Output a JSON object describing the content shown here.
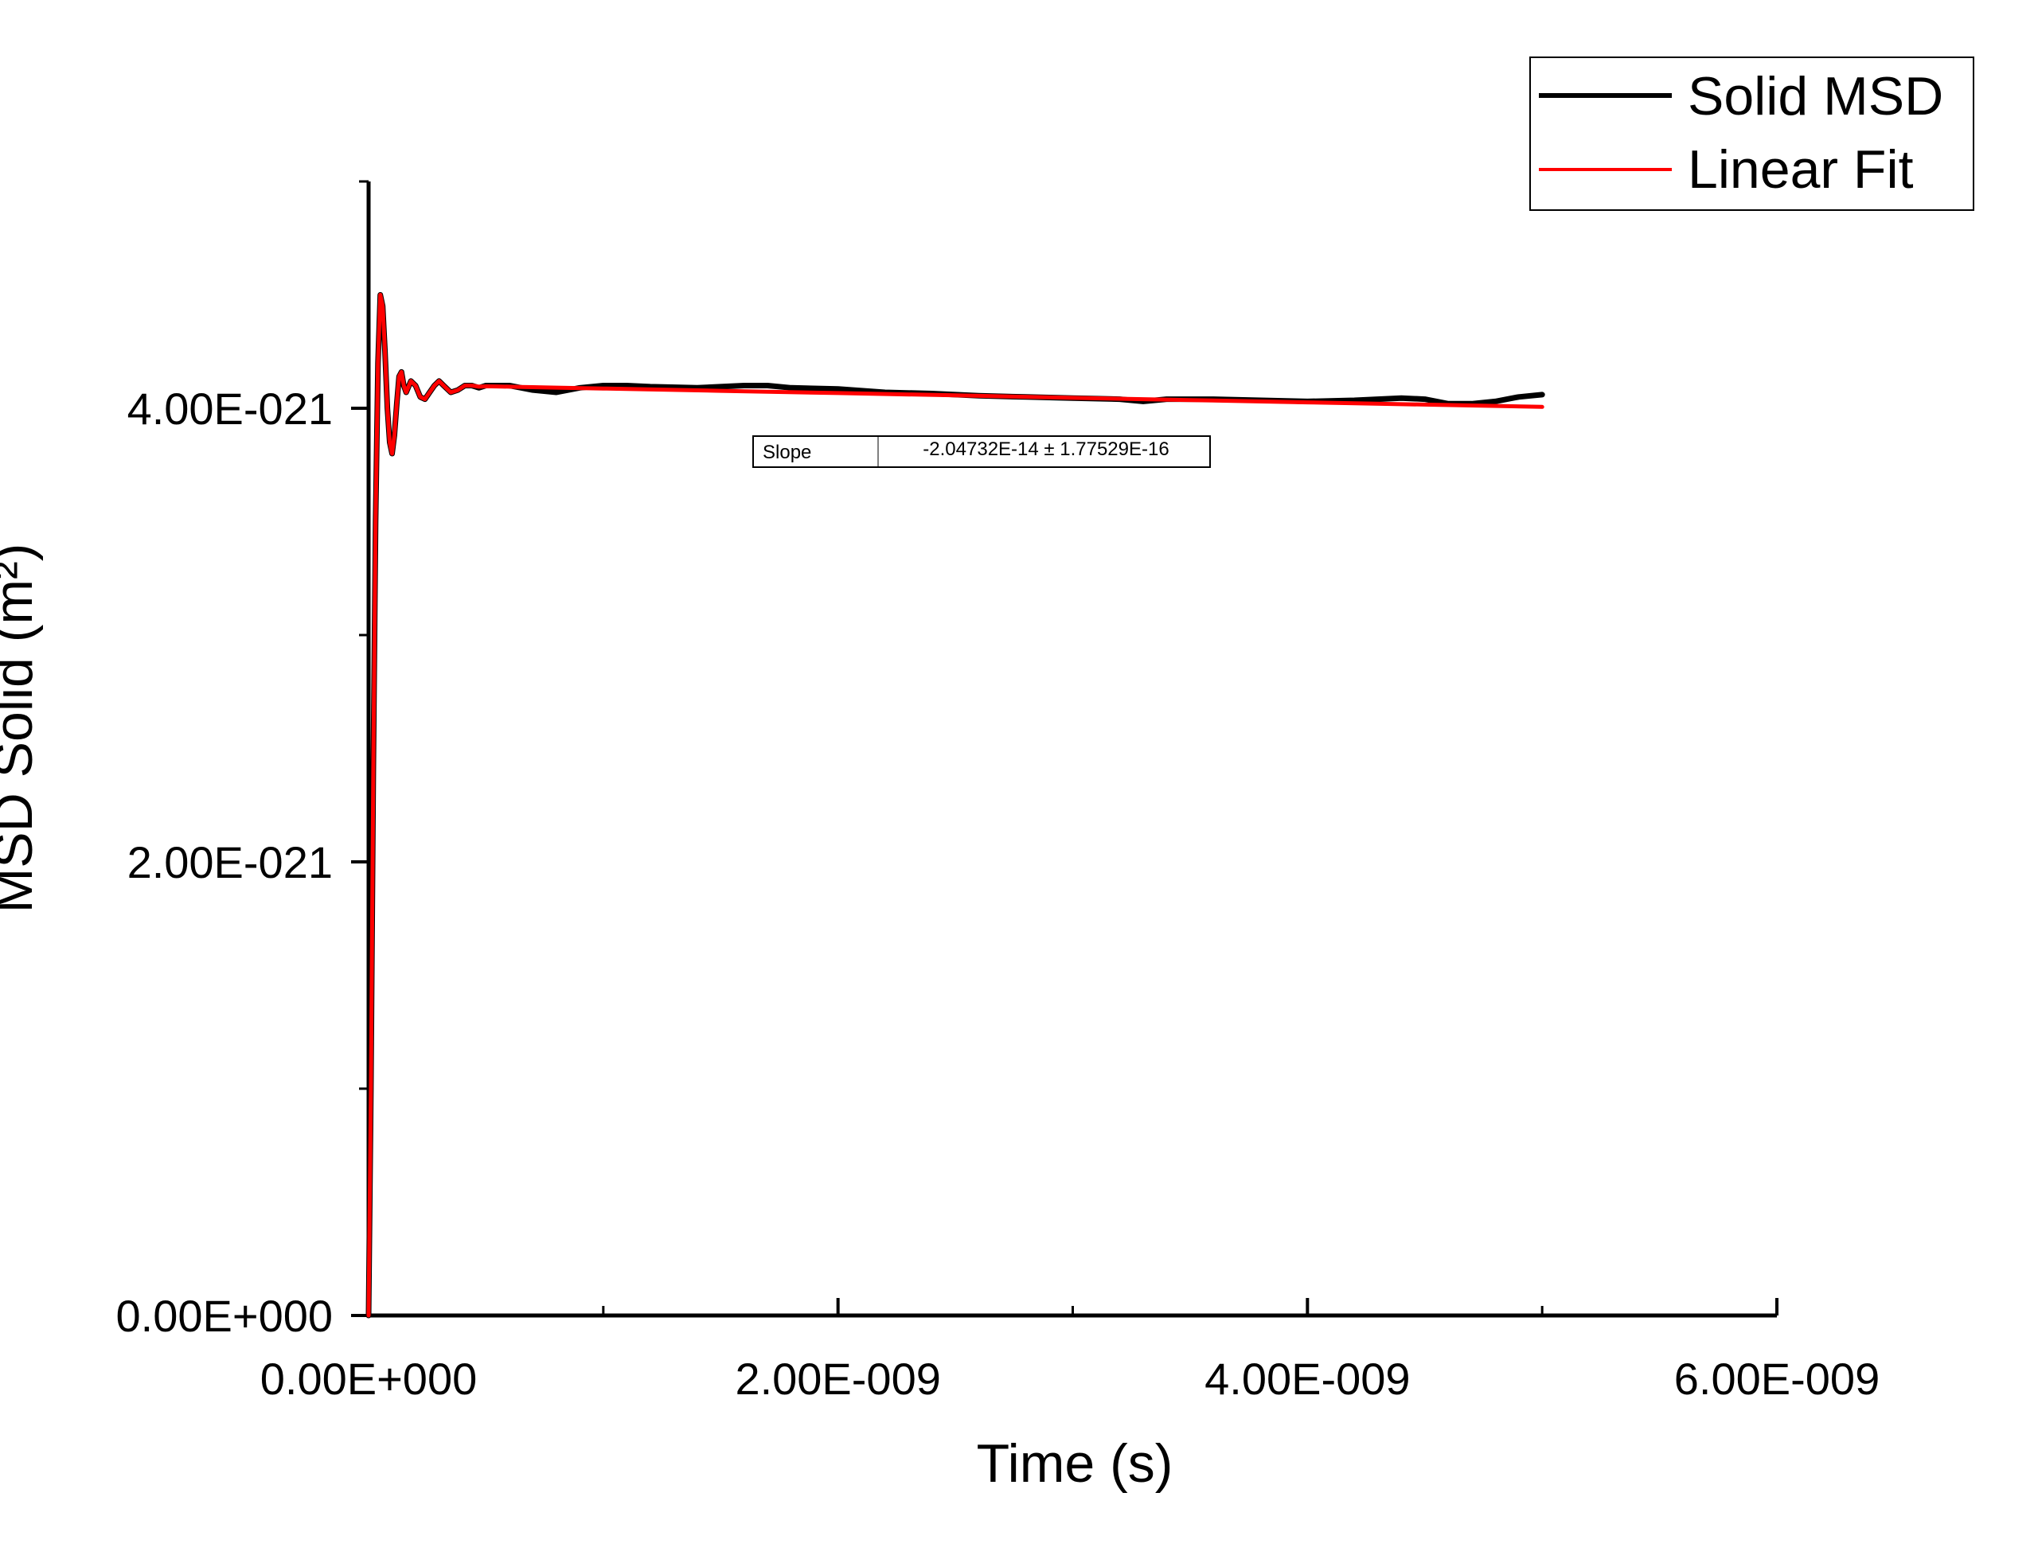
{
  "chart_data": {
    "type": "line",
    "xlabel": "Time (s)",
    "ylabel": "MSD Solid (m²)",
    "xlim": [
      0,
      6e-09
    ],
    "ylim": [
      0,
      5e-21
    ],
    "x_ticks": [
      {
        "value": 0,
        "label": "0.00E+000"
      },
      {
        "value": 2e-09,
        "label": "2.00E-009"
      },
      {
        "value": 4e-09,
        "label": "4.00E-009"
      },
      {
        "value": 6e-09,
        "label": "6.00E-009"
      }
    ],
    "x_minor_ticks": [
      1e-09,
      3e-09,
      5e-09
    ],
    "y_ticks": [
      {
        "value": 0,
        "label": "0.00E+000"
      },
      {
        "value": 2e-21,
        "label": "2.00E-021"
      },
      {
        "value": 4e-21,
        "label": "4.00E-021"
      }
    ],
    "y_minor_ticks": [
      1e-21,
      3e-21,
      5e-21
    ],
    "grid": false,
    "legend_position": "top-right",
    "series": [
      {
        "name": "Solid MSD",
        "color": "#000000",
        "x": [
          0,
          1e-11,
          2e-11,
          3e-11,
          4e-11,
          5e-11,
          6e-11,
          7e-11,
          8e-11,
          9e-11,
          1e-10,
          1.1e-10,
          1.2e-10,
          1.3e-10,
          1.4e-10,
          1.5e-10,
          1.6e-10,
          1.8e-10,
          2e-10,
          2.2e-10,
          2.4e-10,
          2.6e-10,
          2.8e-10,
          3e-10,
          3.2e-10,
          3.5e-10,
          3.8e-10,
          4.1e-10,
          4.4e-10,
          4.7e-10,
          5e-10,
          5.5e-10,
          6e-10,
          6.5e-10,
          7e-10,
          8e-10,
          9e-10,
          1e-09,
          1.1e-09,
          1.2e-09,
          1.4e-09,
          1.6e-09,
          1.7e-09,
          1.8e-09,
          2e-09,
          2.2e-09,
          2.4e-09,
          2.6e-09,
          2.8e-09,
          3e-09,
          3.2e-09,
          3.3e-09,
          3.4e-09,
          3.6e-09,
          3.8e-09,
          4e-09,
          4.2e-09,
          4.3e-09,
          4.4e-09,
          4.5e-09,
          4.6e-09,
          4.7e-09,
          4.8e-09,
          4.9e-09,
          5e-09
        ],
        "y": [
          0,
          1e-21,
          2.4e-21,
          3.5e-21,
          4.2e-21,
          4.5e-21,
          4.45e-21,
          4.25e-21,
          4e-21,
          3.85e-21,
          3.8e-21,
          3.88e-21,
          4.02e-21,
          4.14e-21,
          4.16e-21,
          4.1e-21,
          4.07e-21,
          4.12e-21,
          4.1e-21,
          4.05e-21,
          4.04e-21,
          4.07e-21,
          4.1e-21,
          4.12e-21,
          4.1e-21,
          4.07e-21,
          4.08e-21,
          4.1e-21,
          4.1e-21,
          4.09e-21,
          4.1e-21,
          4.1e-21,
          4.1e-21,
          4.09e-21,
          4.08e-21,
          4.07e-21,
          4.09e-21,
          4.1e-21,
          4.1e-21,
          4.095e-21,
          4.09e-21,
          4.1e-21,
          4.1e-21,
          4.09e-21,
          4.085e-21,
          4.07e-21,
          4.065e-21,
          4.055e-21,
          4.05e-21,
          4.045e-21,
          4.04e-21,
          4.03e-21,
          4.04e-21,
          4.04e-21,
          4.035e-21,
          4.03e-21,
          4.035e-21,
          4.04e-21,
          4.045e-21,
          4.04e-21,
          4.02e-21,
          4.02e-21,
          4.03e-21,
          4.05e-21,
          4.06e-21
        ]
      },
      {
        "name": "Linear Fit",
        "color": "#ff0000",
        "x": [
          0,
          1e-11,
          2e-11,
          3e-11,
          4e-11,
          5e-11,
          6e-11,
          7e-11,
          8e-11,
          9e-11,
          1e-10,
          1.1e-10,
          1.2e-10,
          1.3e-10,
          1.4e-10,
          1.5e-10,
          1.6e-10,
          1.8e-10,
          2e-10,
          2.2e-10,
          2.4e-10,
          2.6e-10,
          2.8e-10,
          3e-10,
          3.2e-10,
          3.5e-10,
          3.8e-10,
          4.1e-10,
          4.4e-10,
          4.7e-10,
          5e-10,
          5.5e-10,
          6e-10,
          6.5e-10,
          7e-10,
          8e-10,
          1e-09,
          1.5e-09,
          2e-09,
          2.5e-09,
          3e-09,
          3.5e-09,
          4e-09,
          4.5e-09,
          5e-09
        ],
        "y": [
          0,
          1e-21,
          2.4e-21,
          3.5e-21,
          4.2e-21,
          4.5e-21,
          4.45e-21,
          4.25e-21,
          4e-21,
          3.85e-21,
          3.8e-21,
          3.88e-21,
          4.02e-21,
          4.14e-21,
          4.16e-21,
          4.1e-21,
          4.07e-21,
          4.12e-21,
          4.1e-21,
          4.05e-21,
          4.04e-21,
          4.07e-21,
          4.1e-21,
          4.12e-21,
          4.1e-21,
          4.07e-21,
          4.08e-21,
          4.1e-21,
          4.1e-21,
          4.095e-21,
          4.097e-21,
          4.096e-21,
          4.095e-21,
          4.094e-21,
          4.093e-21,
          4.091e-21,
          4.087e-21,
          4.077e-21,
          4.067e-21,
          4.057e-21,
          4.046e-21,
          4.036e-21,
          4.026e-21,
          4.016e-21,
          4.006e-21
        ]
      }
    ],
    "annotation": {
      "label": "Slope",
      "value": "-2.04732E-14 ± 1.77529E-16"
    }
  }
}
